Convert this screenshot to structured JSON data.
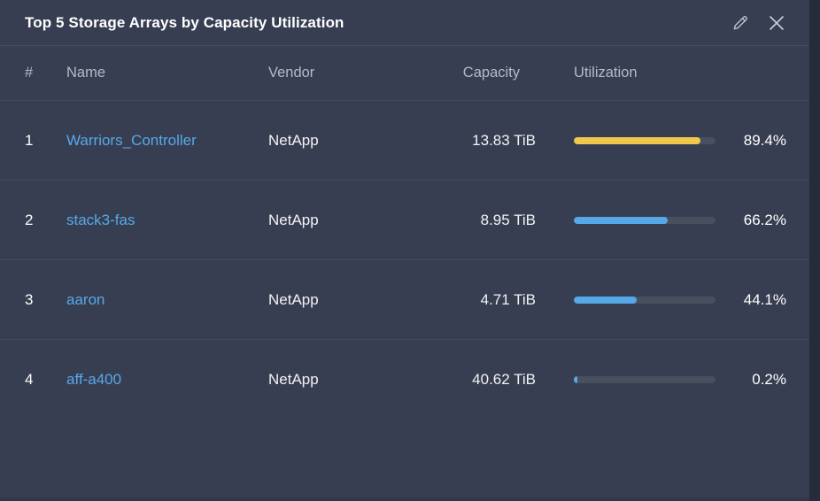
{
  "widget": {
    "title": "Top 5 Storage Arrays by Capacity Utilization"
  },
  "table": {
    "columns": [
      "#",
      "Name",
      "Vendor",
      "Capacity",
      "Utilization"
    ],
    "rows": [
      {
        "index": "1",
        "name": "Warriors_Controller",
        "vendor": "NetApp",
        "capacity": "13.83 TiB",
        "utilization_pct": 89.4,
        "utilization_label": "89.4%",
        "bar_color": "#f2c84c"
      },
      {
        "index": "2",
        "name": "stack3-fas",
        "vendor": "NetApp",
        "capacity": "8.95 TiB",
        "utilization_pct": 66.2,
        "utilization_label": "66.2%",
        "bar_color": "#55a9e8"
      },
      {
        "index": "3",
        "name": "aaron",
        "vendor": "NetApp",
        "capacity": "4.71 TiB",
        "utilization_pct": 44.1,
        "utilization_label": "44.1%",
        "bar_color": "#55a9e8"
      },
      {
        "index": "4",
        "name": "aff-a400",
        "vendor": "NetApp",
        "capacity": "40.62 TiB",
        "utilization_pct": 0.2,
        "utilization_label": "0.2%",
        "bar_color": "#55a9e8"
      }
    ]
  },
  "colors": {
    "widget_background": "#383e51",
    "page_edge": "#272c3b",
    "separator": "#454b5e",
    "header_text": "#b3bac8",
    "link_blue": "#55a9e8",
    "bar_track": "#4a4f5f",
    "bar_warning_yellow": "#f2c84c",
    "bar_normal_blue": "#55a9e8",
    "icon_gray": "#c6cbd8"
  },
  "icons": {
    "edit": "edit-pencil-icon",
    "close": "close-x-icon"
  }
}
